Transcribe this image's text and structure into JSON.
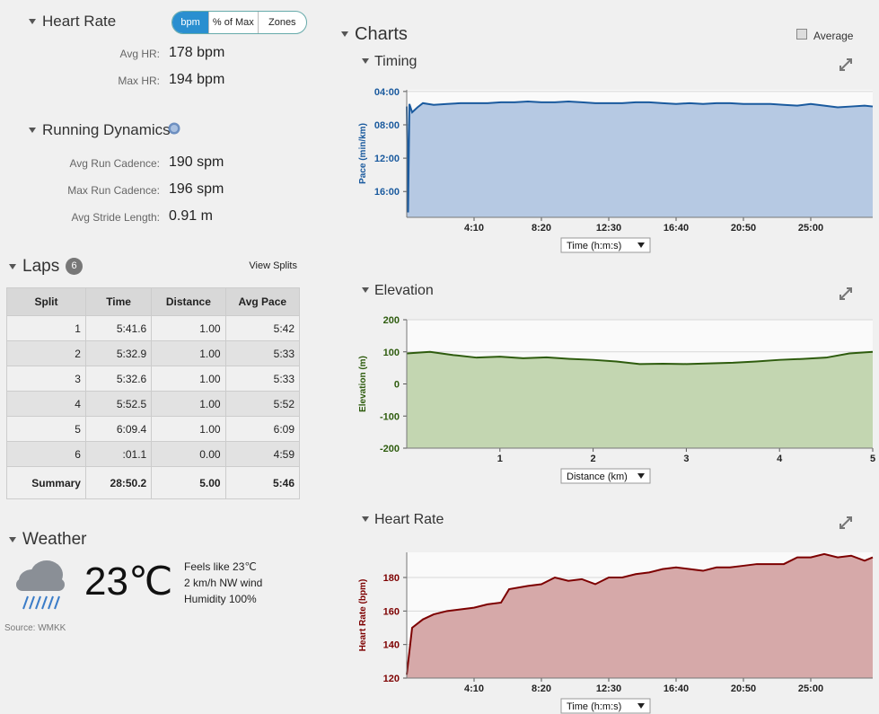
{
  "heart_rate": {
    "title": "Heart Rate",
    "toggle": [
      "bpm",
      "% of Max",
      "Zones"
    ],
    "stats": [
      {
        "label": "Avg HR:",
        "value": "178 bpm"
      },
      {
        "label": "Max HR:",
        "value": "194 bpm"
      }
    ]
  },
  "running_dynamics": {
    "title": "Running Dynamics",
    "stats": [
      {
        "label": "Avg Run Cadence:",
        "value": "190 spm"
      },
      {
        "label": "Max Run Cadence:",
        "value": "196 spm"
      },
      {
        "label": "Avg Stride Length:",
        "value": "0.91 m"
      }
    ]
  },
  "laps": {
    "title": "Laps",
    "count": "6",
    "view_splits": "View Splits",
    "columns": [
      "Split",
      "Time",
      "Distance",
      "Avg Pace"
    ],
    "rows": [
      [
        "1",
        "5:41.6",
        "1.00",
        "5:42"
      ],
      [
        "2",
        "5:32.9",
        "1.00",
        "5:33"
      ],
      [
        "3",
        "5:32.6",
        "1.00",
        "5:33"
      ],
      [
        "4",
        "5:52.5",
        "1.00",
        "5:52"
      ],
      [
        "5",
        "6:09.4",
        "1.00",
        "6:09"
      ],
      [
        "6",
        ":01.1",
        "0.00",
        "4:59"
      ]
    ],
    "summary": [
      "Summary",
      "28:50.2",
      "5.00",
      "5:46"
    ]
  },
  "weather": {
    "title": "Weather",
    "temperature": "23℃",
    "details": [
      "Feels like 23℃",
      "2 km/h NW wind",
      "Humidity 100%"
    ],
    "source": "Source: WMKK"
  },
  "charts_title": "Charts",
  "average_label": "Average",
  "chart_data": [
    {
      "type": "area",
      "title": "Timing",
      "y_label": "Pace (min/km)",
      "x_selector": "Time (h:m:s)",
      "color": "#1a5a9e",
      "fill": "#b6c9e3",
      "xlim": [
        0,
        1730
      ],
      "ylim": [
        19.1,
        3.8
      ],
      "xticks": [
        {
          "value": 250,
          "label": "4:10"
        },
        {
          "value": 500,
          "label": "8:20"
        },
        {
          "value": 750,
          "label": "12:30"
        },
        {
          "value": 1000,
          "label": "16:40"
        },
        {
          "value": 1250,
          "label": "20:50"
        },
        {
          "value": 1500,
          "label": "25:00"
        }
      ],
      "yticks": [
        {
          "value": 4,
          "label": "04:00"
        },
        {
          "value": 8,
          "label": "08:00"
        },
        {
          "value": 12,
          "label": "12:00"
        },
        {
          "value": 16,
          "label": "16:00"
        }
      ],
      "x": [
        0,
        5,
        10,
        20,
        40,
        60,
        100,
        150,
        200,
        250,
        300,
        350,
        400,
        450,
        500,
        550,
        600,
        650,
        700,
        750,
        800,
        850,
        900,
        950,
        1000,
        1050,
        1100,
        1150,
        1200,
        1250,
        1300,
        1350,
        1400,
        1450,
        1500,
        1550,
        1600,
        1650,
        1700,
        1730
      ],
      "values": [
        5.8,
        18.5,
        5.5,
        6.5,
        5.9,
        5.4,
        5.6,
        5.5,
        5.4,
        5.4,
        5.4,
        5.3,
        5.3,
        5.2,
        5.3,
        5.3,
        5.2,
        5.3,
        5.4,
        5.4,
        5.4,
        5.3,
        5.3,
        5.4,
        5.5,
        5.4,
        5.5,
        5.4,
        5.4,
        5.5,
        5.5,
        5.5,
        5.6,
        5.7,
        5.5,
        5.7,
        5.9,
        5.8,
        5.7,
        5.8
      ]
    },
    {
      "type": "area",
      "title": "Elevation",
      "y_label": "Elevation (m)",
      "x_selector": "Distance (km)",
      "color": "#2e5c0e",
      "fill": "#c3d6b1",
      "xlim": [
        0,
        5
      ],
      "ylim": [
        -200,
        200
      ],
      "xticks": [
        1,
        2,
        3,
        4,
        5
      ],
      "yticks": [
        200,
        100,
        0,
        -100,
        -200
      ],
      "x": [
        0,
        0.25,
        0.5,
        0.75,
        1,
        1.25,
        1.5,
        1.75,
        2,
        2.25,
        2.5,
        2.75,
        3,
        3.25,
        3.5,
        3.75,
        4,
        4.25,
        4.5,
        4.75,
        5
      ],
      "values": [
        95,
        100,
        90,
        82,
        85,
        80,
        83,
        78,
        75,
        70,
        62,
        63,
        62,
        64,
        66,
        70,
        75,
        78,
        82,
        95,
        100
      ]
    },
    {
      "type": "area",
      "title": "Heart Rate",
      "y_label": "Heart Rate (bpm)",
      "x_selector": "Time (h:m:s)",
      "color": "#7d0000",
      "fill": "#d6a9a9",
      "xlim": [
        0,
        1730
      ],
      "ylim": [
        120,
        195
      ],
      "xticks": [
        {
          "value": 250,
          "label": "4:10"
        },
        {
          "value": 500,
          "label": "8:20"
        },
        {
          "value": 750,
          "label": "12:30"
        },
        {
          "value": 1000,
          "label": "16:40"
        },
        {
          "value": 1250,
          "label": "20:50"
        },
        {
          "value": 1500,
          "label": "25:00"
        }
      ],
      "yticks": [
        120,
        140,
        160,
        180
      ],
      "x": [
        0,
        20,
        60,
        100,
        150,
        200,
        250,
        300,
        350,
        380,
        450,
        500,
        550,
        600,
        650,
        700,
        750,
        800,
        850,
        900,
        950,
        1000,
        1050,
        1100,
        1150,
        1200,
        1250,
        1300,
        1350,
        1400,
        1450,
        1500,
        1550,
        1600,
        1650,
        1700,
        1730
      ],
      "values": [
        122,
        150,
        155,
        158,
        160,
        161,
        162,
        164,
        165,
        173,
        175,
        176,
        180,
        178,
        179,
        176,
        180,
        180,
        182,
        183,
        185,
        186,
        185,
        184,
        186,
        186,
        187,
        188,
        188,
        188,
        192,
        192,
        194,
        192,
        193,
        190,
        192
      ]
    }
  ]
}
